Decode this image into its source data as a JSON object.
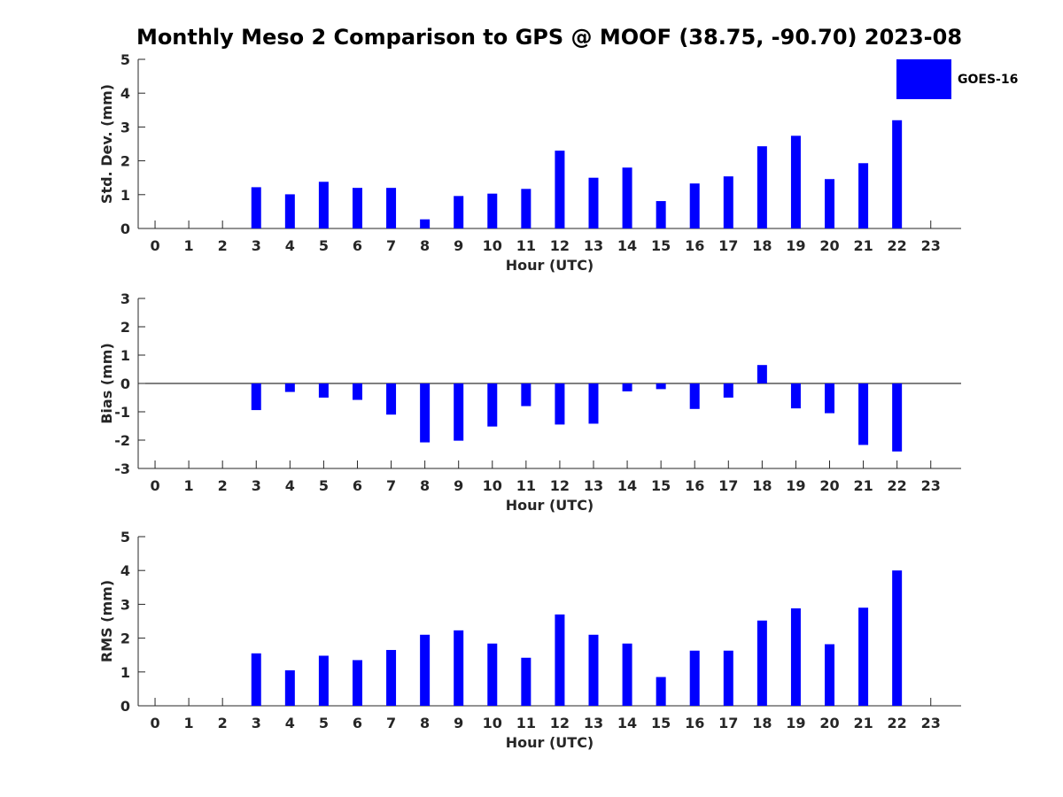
{
  "title": "Monthly Meso 2 Comparison to GPS @ MOOF (38.75, -90.70) 2023-08",
  "legend": {
    "label": "GOES-16"
  },
  "colors": {
    "bar": "#0000ff",
    "axis": "#262626"
  },
  "chart_data": [
    {
      "type": "bar",
      "xlabel": "Hour (UTC)",
      "ylabel": "Std. Dev. (mm)",
      "categories": [
        0,
        1,
        2,
        3,
        4,
        5,
        6,
        7,
        8,
        9,
        10,
        11,
        12,
        13,
        14,
        15,
        16,
        17,
        18,
        19,
        20,
        21,
        22,
        23
      ],
      "ylim": [
        0,
        5
      ],
      "yticks": [
        0,
        1,
        2,
        3,
        4,
        5
      ],
      "series": [
        {
          "name": "GOES-16",
          "values": [
            null,
            null,
            null,
            1.22,
            1.01,
            1.38,
            1.2,
            1.2,
            0.27,
            0.96,
            1.03,
            1.17,
            2.3,
            1.5,
            1.8,
            0.81,
            1.33,
            1.54,
            2.43,
            2.74,
            1.46,
            1.93,
            3.2,
            null
          ]
        }
      ]
    },
    {
      "type": "bar",
      "xlabel": "Hour (UTC)",
      "ylabel": "Bias (mm)",
      "categories": [
        0,
        1,
        2,
        3,
        4,
        5,
        6,
        7,
        8,
        9,
        10,
        11,
        12,
        13,
        14,
        15,
        16,
        17,
        18,
        19,
        20,
        21,
        22,
        23
      ],
      "ylim": [
        -3,
        3
      ],
      "yticks": [
        -3,
        -2,
        -1,
        0,
        1,
        2,
        3
      ],
      "zero_line": true,
      "series": [
        {
          "name": "GOES-16",
          "values": [
            null,
            null,
            null,
            -0.94,
            -0.3,
            -0.5,
            -0.58,
            -1.1,
            -2.08,
            -2.02,
            -1.52,
            -0.8,
            -1.45,
            -1.42,
            -0.28,
            -0.2,
            -0.9,
            -0.5,
            0.65,
            -0.88,
            -1.05,
            -2.17,
            -2.4,
            null
          ]
        }
      ]
    },
    {
      "type": "bar",
      "xlabel": "Hour (UTC)",
      "ylabel": "RMS (mm)",
      "categories": [
        0,
        1,
        2,
        3,
        4,
        5,
        6,
        7,
        8,
        9,
        10,
        11,
        12,
        13,
        14,
        15,
        16,
        17,
        18,
        19,
        20,
        21,
        22,
        23
      ],
      "ylim": [
        0,
        5
      ],
      "yticks": [
        0,
        1,
        2,
        3,
        4,
        5
      ],
      "series": [
        {
          "name": "GOES-16",
          "values": [
            null,
            null,
            null,
            1.55,
            1.05,
            1.48,
            1.35,
            1.65,
            2.1,
            2.23,
            1.84,
            1.42,
            2.7,
            2.1,
            1.84,
            0.85,
            1.63,
            1.63,
            2.52,
            2.88,
            1.82,
            2.9,
            4.0,
            null
          ]
        }
      ]
    }
  ]
}
